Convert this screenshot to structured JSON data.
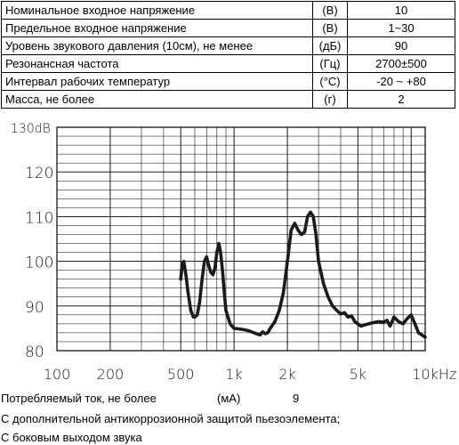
{
  "specs": {
    "rows": [
      {
        "name": "Номинальное входное напряжение",
        "unit": "(B)",
        "value": "10"
      },
      {
        "name": "Предельное входное напряжение",
        "unit": "(B)",
        "value": "1~30"
      },
      {
        "name": "Уровень звукового давления (10см), не менее",
        "unit": "(дБ)",
        "value": "90"
      },
      {
        "name": "Резонансная частота",
        "unit": "(Гц)",
        "value": "2700±500"
      },
      {
        "name": "Интервал рабочих температур",
        "unit": "(°C)",
        "value": "-20 ~ +80"
      },
      {
        "name": "Масса, не более",
        "unit": "(г)",
        "value": "2"
      }
    ]
  },
  "chart_data": {
    "type": "line",
    "x_scale": "log",
    "xlim": [
      100,
      12000
    ],
    "ylim": [
      80,
      130
    ],
    "grid": true,
    "x_ticks": [
      {
        "value": 100,
        "label": "100"
      },
      {
        "value": 200,
        "label": "200"
      },
      {
        "value": 500,
        "label": "500"
      },
      {
        "value": 1000,
        "label": "1k"
      },
      {
        "value": 2000,
        "label": "2k"
      },
      {
        "value": 5000,
        "label": "5k"
      },
      {
        "value": 10000,
        "label": "10kHz"
      }
    ],
    "y_ticks": [
      {
        "value": 80,
        "label": "80"
      },
      {
        "value": 90,
        "label": "90"
      },
      {
        "value": 100,
        "label": "100"
      },
      {
        "value": 110,
        "label": "110"
      },
      {
        "value": 120,
        "label": "120"
      },
      {
        "value": 130,
        "label": "130dB"
      }
    ],
    "series": [
      {
        "color": "#1a1a1a",
        "x": [
          500,
          510,
          520,
          535,
          550,
          570,
          590,
          600,
          620,
          640,
          660,
          680,
          700,
          720,
          740,
          760,
          780,
          800,
          820,
          840,
          860,
          880,
          900,
          950,
          1000,
          1100,
          1200,
          1300,
          1400,
          1450,
          1500,
          1550,
          1600,
          1700,
          1800,
          1900,
          2000,
          2100,
          2200,
          2300,
          2400,
          2500,
          2600,
          2700,
          2800,
          2900,
          3000,
          3200,
          3400,
          3600,
          3800,
          4000,
          4200,
          4400,
          4600,
          4800,
          5000,
          5200,
          5500,
          6000,
          6500,
          7000,
          7300,
          7600,
          8000,
          8500,
          9000,
          9500,
          10000,
          10500,
          11000,
          11500,
          12000
        ],
        "y": [
          96,
          99.5,
          100,
          97,
          93,
          89,
          87.5,
          87.5,
          88,
          91,
          96,
          100,
          101,
          99,
          97.5,
          97,
          98.5,
          102,
          104,
          102,
          98,
          93,
          89,
          86,
          85,
          84.8,
          84.5,
          84,
          83.5,
          84.2,
          83.8,
          84,
          85,
          86.5,
          89,
          93,
          100,
          107,
          108.5,
          107,
          106,
          106.5,
          110,
          111,
          110,
          106,
          100,
          95,
          92,
          90,
          89,
          88.2,
          88.5,
          87.5,
          87.8,
          86.5,
          86,
          85.5,
          85.8,
          86.2,
          86.5,
          86.4,
          86.8,
          85.5,
          87.5,
          86.5,
          86,
          87.2,
          88,
          86,
          84,
          83.5,
          83
        ]
      }
    ]
  },
  "footer": {
    "current_label": "Потребляемый ток, не более",
    "current_unit": "(мА)",
    "current_value": "9",
    "note1": "С дополнительной антикоррозионной защитой пьезоэлемента;",
    "note2": "С боковым выходом звука"
  }
}
